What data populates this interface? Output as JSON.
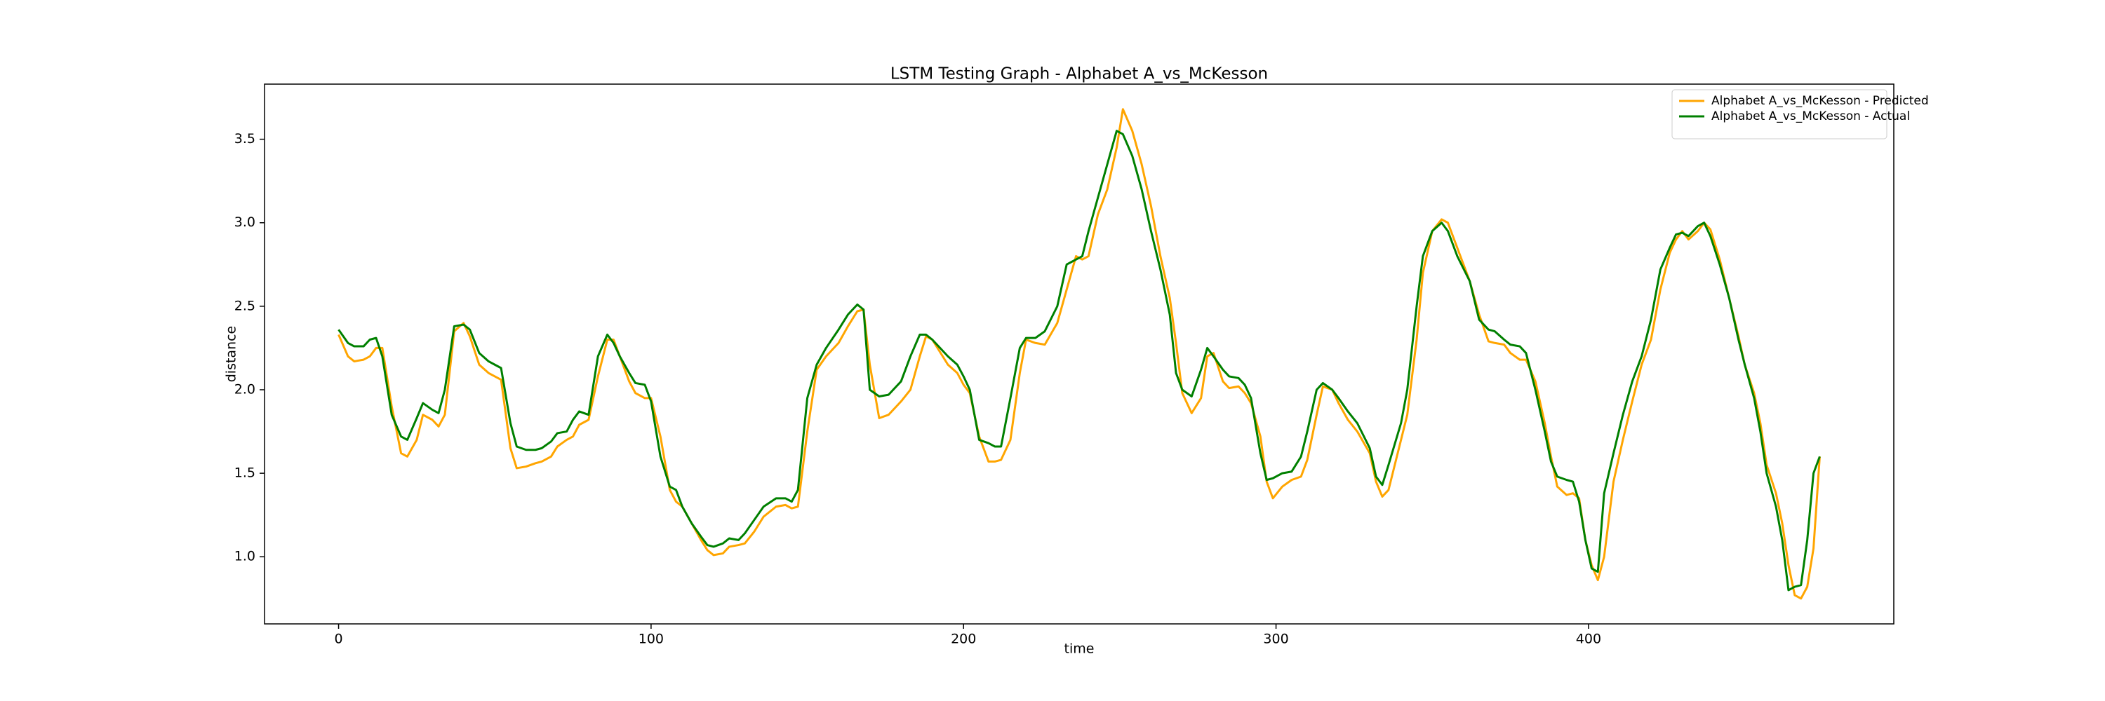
{
  "chart_data": {
    "type": "line",
    "title": "LSTM Testing Graph - Alphabet A_vs_McKesson",
    "x_label": "time",
    "y_label": "distance",
    "x": [
      0,
      3,
      5,
      8,
      10,
      12,
      14,
      17,
      20,
      22,
      25,
      27,
      30,
      32,
      34,
      37,
      40,
      42,
      45,
      48,
      50,
      52,
      55,
      57,
      60,
      63,
      65,
      68,
      70,
      73,
      75,
      77,
      80,
      83,
      86,
      88,
      90,
      93,
      95,
      98,
      100,
      103,
      106,
      108,
      110,
      113,
      116,
      118,
      120,
      123,
      125,
      128,
      130,
      133,
      136,
      140,
      143,
      145,
      147,
      150,
      153,
      156,
      160,
      163,
      166,
      168,
      170,
      173,
      176,
      180,
      183,
      186,
      188,
      190,
      195,
      198,
      200,
      202,
      205,
      208,
      210,
      212,
      215,
      218,
      220,
      223,
      226,
      230,
      233,
      236,
      238,
      240,
      243,
      246,
      249,
      251,
      254,
      257,
      260,
      263,
      266,
      268,
      270,
      273,
      276,
      278,
      280,
      283,
      285,
      288,
      290,
      292,
      295,
      297,
      299,
      302,
      305,
      308,
      310,
      313,
      315,
      318,
      320,
      323,
      326,
      330,
      332,
      334,
      336,
      340,
      342,
      345,
      347,
      350,
      353,
      355,
      358,
      362,
      365,
      368,
      370,
      373,
      375,
      378,
      380,
      383,
      386,
      388,
      390,
      393,
      395,
      397,
      399,
      401,
      403,
      405,
      408,
      411,
      414,
      417,
      420,
      423,
      426,
      428,
      430,
      432,
      435,
      437,
      439,
      442,
      445,
      448,
      450,
      453,
      455,
      457,
      460,
      462,
      464,
      466,
      468,
      470,
      472,
      474
    ],
    "series": [
      {
        "name": "Alphabet A_vs_McKesson - Predicted",
        "color": "#ffa500",
        "values": [
          2.33,
          2.2,
          2.17,
          2.18,
          2.2,
          2.25,
          2.25,
          1.9,
          1.62,
          1.6,
          1.7,
          1.85,
          1.82,
          1.78,
          1.85,
          2.35,
          2.4,
          2.32,
          2.15,
          2.1,
          2.08,
          2.06,
          1.65,
          1.53,
          1.54,
          1.56,
          1.57,
          1.6,
          1.66,
          1.7,
          1.72,
          1.79,
          1.82,
          2.08,
          2.3,
          2.3,
          2.2,
          2.05,
          1.98,
          1.95,
          1.95,
          1.72,
          1.4,
          1.33,
          1.3,
          1.2,
          1.1,
          1.04,
          1.01,
          1.02,
          1.06,
          1.07,
          1.08,
          1.15,
          1.24,
          1.3,
          1.31,
          1.29,
          1.3,
          1.75,
          2.12,
          2.2,
          2.28,
          2.38,
          2.47,
          2.48,
          2.15,
          1.83,
          1.85,
          1.93,
          2.0,
          2.2,
          2.32,
          2.3,
          2.15,
          2.1,
          2.03,
          1.98,
          1.72,
          1.57,
          1.57,
          1.58,
          1.7,
          2.1,
          2.3,
          2.28,
          2.27,
          2.4,
          2.6,
          2.8,
          2.78,
          2.8,
          3.05,
          3.2,
          3.45,
          3.68,
          3.55,
          3.35,
          3.1,
          2.8,
          2.55,
          2.28,
          1.98,
          1.86,
          1.95,
          2.2,
          2.22,
          2.05,
          2.01,
          2.02,
          1.98,
          1.92,
          1.72,
          1.45,
          1.35,
          1.42,
          1.46,
          1.48,
          1.58,
          1.85,
          2.02,
          2.0,
          1.92,
          1.82,
          1.75,
          1.62,
          1.45,
          1.36,
          1.4,
          1.7,
          1.85,
          2.3,
          2.7,
          2.95,
          3.02,
          3.0,
          2.85,
          2.65,
          2.45,
          2.29,
          2.28,
          2.27,
          2.22,
          2.18,
          2.18,
          2.05,
          1.8,
          1.6,
          1.42,
          1.37,
          1.38,
          1.35,
          1.1,
          0.95,
          0.86,
          1.0,
          1.45,
          1.7,
          1.93,
          2.15,
          2.3,
          2.6,
          2.82,
          2.9,
          2.95,
          2.9,
          2.95,
          3.0,
          2.96,
          2.78,
          2.55,
          2.32,
          2.15,
          1.98,
          1.8,
          1.55,
          1.38,
          1.2,
          0.95,
          0.77,
          0.75,
          0.82,
          1.05,
          1.6
        ]
      },
      {
        "name": "Alphabet A_vs_McKesson - Actual",
        "color": "#008000",
        "values": [
          2.36,
          2.28,
          2.26,
          2.26,
          2.3,
          2.31,
          2.2,
          1.85,
          1.72,
          1.7,
          1.83,
          1.92,
          1.88,
          1.86,
          2.0,
          2.38,
          2.39,
          2.36,
          2.22,
          2.17,
          2.15,
          2.13,
          1.8,
          1.66,
          1.64,
          1.64,
          1.65,
          1.69,
          1.74,
          1.75,
          1.82,
          1.87,
          1.85,
          2.2,
          2.33,
          2.28,
          2.2,
          2.1,
          2.04,
          2.03,
          1.93,
          1.6,
          1.42,
          1.4,
          1.3,
          1.2,
          1.12,
          1.07,
          1.06,
          1.08,
          1.11,
          1.1,
          1.14,
          1.22,
          1.3,
          1.35,
          1.35,
          1.33,
          1.4,
          1.95,
          2.15,
          2.25,
          2.36,
          2.45,
          2.51,
          2.48,
          2.0,
          1.96,
          1.97,
          2.05,
          2.2,
          2.33,
          2.33,
          2.3,
          2.2,
          2.15,
          2.08,
          2.0,
          1.7,
          1.68,
          1.66,
          1.66,
          1.95,
          2.25,
          2.31,
          2.31,
          2.35,
          2.5,
          2.75,
          2.78,
          2.8,
          2.95,
          3.15,
          3.35,
          3.55,
          3.53,
          3.4,
          3.2,
          2.95,
          2.72,
          2.45,
          2.1,
          2.0,
          1.96,
          2.12,
          2.25,
          2.2,
          2.12,
          2.08,
          2.07,
          2.03,
          1.95,
          1.62,
          1.46,
          1.47,
          1.5,
          1.51,
          1.6,
          1.75,
          2.0,
          2.04,
          2.0,
          1.95,
          1.87,
          1.8,
          1.65,
          1.48,
          1.43,
          1.55,
          1.8,
          2.0,
          2.5,
          2.8,
          2.95,
          3.0,
          2.95,
          2.8,
          2.65,
          2.42,
          2.36,
          2.35,
          2.3,
          2.27,
          2.26,
          2.22,
          2.0,
          1.75,
          1.57,
          1.48,
          1.46,
          1.45,
          1.33,
          1.1,
          0.93,
          0.91,
          1.38,
          1.62,
          1.85,
          2.05,
          2.2,
          2.42,
          2.72,
          2.85,
          2.93,
          2.94,
          2.92,
          2.98,
          3.0,
          2.92,
          2.75,
          2.55,
          2.3,
          2.15,
          1.95,
          1.75,
          1.5,
          1.3,
          1.1,
          0.8,
          0.82,
          0.83,
          1.1,
          1.5,
          1.6
        ]
      }
    ],
    "xlim": [
      -23.7,
      497.7
    ],
    "xticks": [
      0,
      100,
      200,
      300,
      400
    ],
    "ylim": [
      0.598,
      3.83
    ],
    "yticks": [
      {
        "value": 1,
        "label": "1.0"
      },
      1.5,
      {
        "value": 2,
        "label": "2.0"
      },
      2.5,
      {
        "value": 3,
        "label": "3.0"
      },
      3.5
    ],
    "grid": false,
    "legend": "upper right"
  }
}
